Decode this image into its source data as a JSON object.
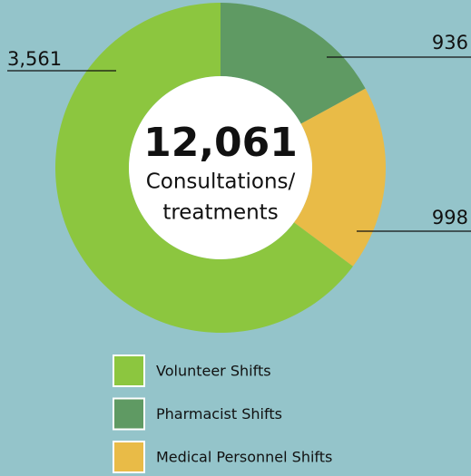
{
  "chart_data": {
    "type": "donut",
    "categories": [
      "Volunteer Shifts",
      "Pharmacist Shifts",
      "Medical Personnel Shifts"
    ],
    "values": [
      3561,
      936,
      998
    ],
    "value_labels": [
      "3,561",
      "936",
      "998"
    ],
    "colors": [
      "#8cc63f",
      "#5f9a63",
      "#e9bb47"
    ],
    "center_value": "12,061",
    "center_text": [
      "Consultations/",
      "treatments"
    ]
  }
}
